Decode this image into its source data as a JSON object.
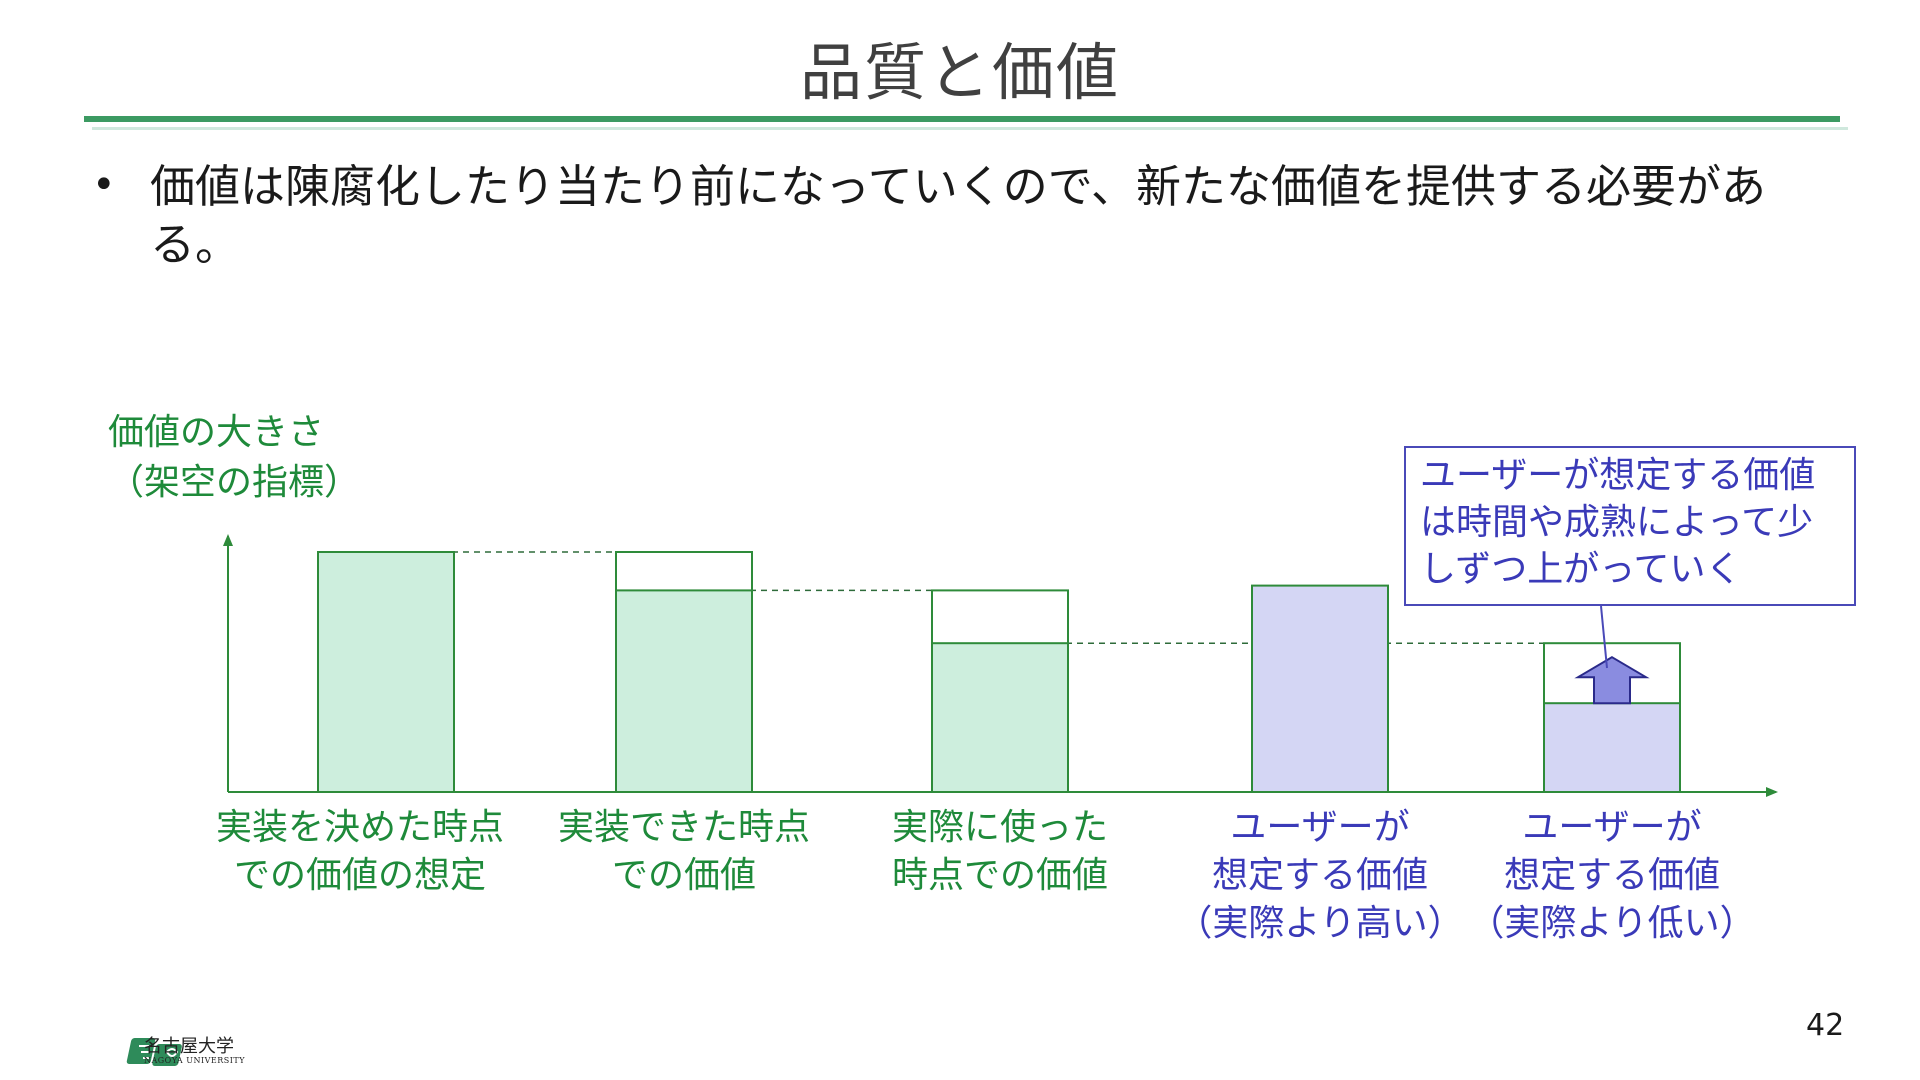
{
  "slide": {
    "title": "品質と価値",
    "bullet": "価値は陳腐化したり当たり前になっていくので、新たな価値を提供する必要がある。",
    "page_number": "42"
  },
  "diagram": {
    "y_axis_label_lines": [
      "価値の大きさ",
      "（架空の指標）"
    ],
    "categories": [
      {
        "lines": [
          "実装を決めた時点",
          "での価値の想定"
        ],
        "value": 1.0,
        "outline_top": 1.0,
        "style": "green"
      },
      {
        "lines": [
          "実装できた時点",
          "での価値"
        ],
        "value": 0.84,
        "outline_top": 1.0,
        "style": "green"
      },
      {
        "lines": [
          "実際に使った",
          "時点での価値"
        ],
        "value": 0.62,
        "outline_top": 0.84,
        "style": "green"
      },
      {
        "lines": [
          "ユーザーが",
          "想定する価値",
          "（実際より高い）"
        ],
        "value": 0.86,
        "outline_top": 0.86,
        "style": "blue"
      },
      {
        "lines": [
          "ユーザーが",
          "想定する価値",
          "（実際より低い）"
        ],
        "value": 0.37,
        "outline_top": 0.62,
        "style": "blue",
        "up_arrow": true
      }
    ],
    "callout": {
      "lines": [
        "ユーザーが想定する価値",
        "は時間や成熟によって少",
        "しずつ上がっていく"
      ]
    },
    "colors": {
      "green_fill": "#cdeedd",
      "green_stroke": "#2e8b3a",
      "blue_fill": "#d4d6f4",
      "blue_stroke": "#2e8b3a",
      "arrow_fill": "#8a8ce0",
      "arrow_stroke": "#2a2a8a",
      "green_text": "#1e8a3a",
      "blue_text": "#3a3ab8"
    }
  },
  "logo": {
    "name": "名古屋大学",
    "subname": "NAGOYA UNIVERSITY"
  }
}
